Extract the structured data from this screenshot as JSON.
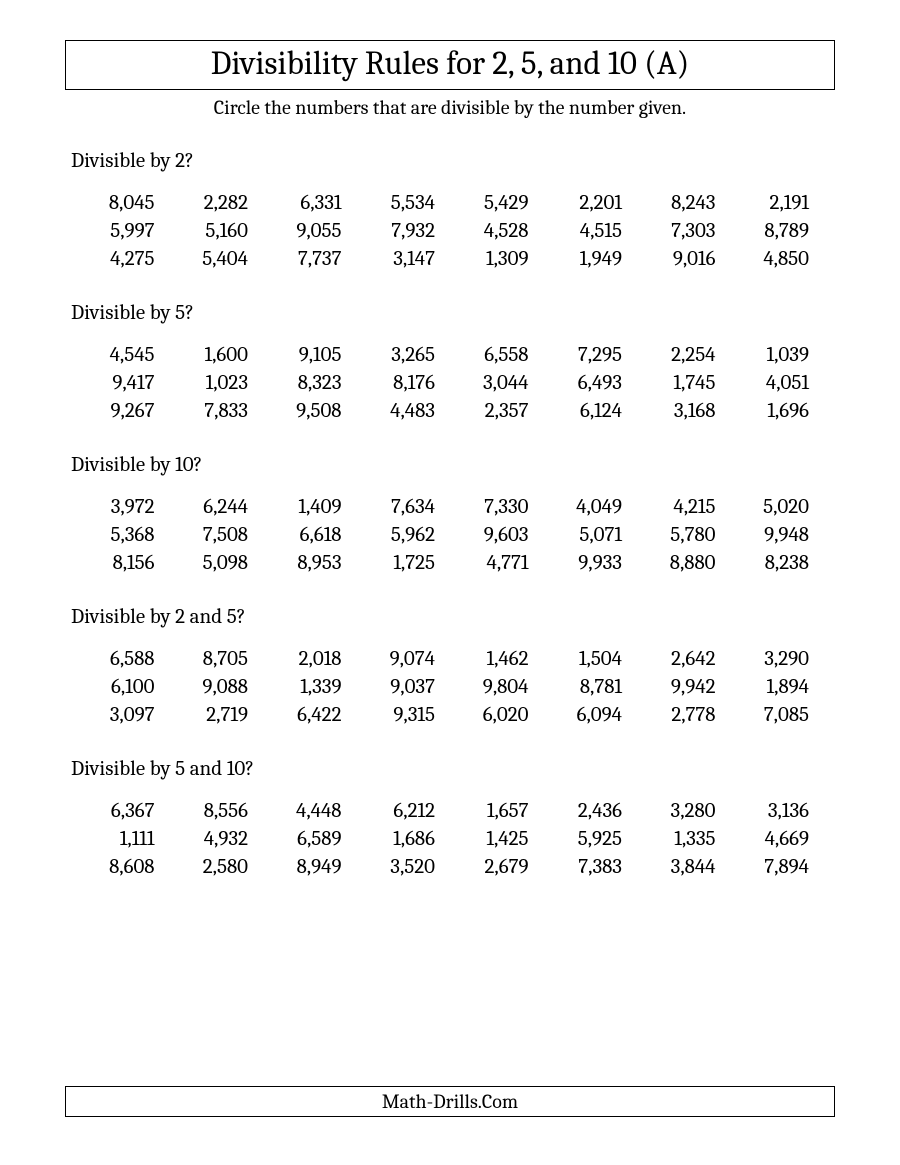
{
  "title": "Divisibility Rules for 2, 5, and 10 (A)",
  "instruction": "Circle the numbers that are divisible by the number given.",
  "footer": "Math-Drills.Com",
  "columns": 8,
  "sections": [
    {
      "heading": "Divisible by 2?",
      "numbers": [
        "8,045",
        "2,282",
        "6,331",
        "5,534",
        "5,429",
        "2,201",
        "8,243",
        "2,191",
        "5,997",
        "5,160",
        "9,055",
        "7,932",
        "4,528",
        "4,515",
        "7,303",
        "8,789",
        "4,275",
        "5,404",
        "7,737",
        "3,147",
        "1,309",
        "1,949",
        "9,016",
        "4,850"
      ]
    },
    {
      "heading": "Divisible by 5?",
      "numbers": [
        "4,545",
        "1,600",
        "9,105",
        "3,265",
        "6,558",
        "7,295",
        "2,254",
        "1,039",
        "9,417",
        "1,023",
        "8,323",
        "8,176",
        "3,044",
        "6,493",
        "1,745",
        "4,051",
        "9,267",
        "7,833",
        "9,508",
        "4,483",
        "2,357",
        "6,124",
        "3,168",
        "1,696"
      ]
    },
    {
      "heading": "Divisible by 10?",
      "numbers": [
        "3,972",
        "6,244",
        "1,409",
        "7,634",
        "7,330",
        "4,049",
        "4,215",
        "5,020",
        "5,368",
        "7,508",
        "6,618",
        "5,962",
        "9,603",
        "5,071",
        "5,780",
        "9,948",
        "8,156",
        "5,098",
        "8,953",
        "1,725",
        "4,771",
        "9,933",
        "8,880",
        "8,238"
      ]
    },
    {
      "heading": "Divisible by 2 and 5?",
      "numbers": [
        "6,588",
        "8,705",
        "2,018",
        "9,074",
        "1,462",
        "1,504",
        "2,642",
        "3,290",
        "6,100",
        "9,088",
        "1,339",
        "9,037",
        "9,804",
        "8,781",
        "9,942",
        "1,894",
        "3,097",
        "2,719",
        "6,422",
        "9,315",
        "6,020",
        "6,094",
        "2,778",
        "7,085"
      ]
    },
    {
      "heading": "Divisible by 5 and 10?",
      "numbers": [
        "6,367",
        "8,556",
        "4,448",
        "6,212",
        "1,657",
        "2,436",
        "3,280",
        "3,136",
        "1,111",
        "4,932",
        "6,589",
        "1,686",
        "1,425",
        "5,925",
        "1,335",
        "4,669",
        "8,608",
        "2,580",
        "8,949",
        "3,520",
        "2,679",
        "7,383",
        "3,844",
        "7,894"
      ]
    }
  ]
}
